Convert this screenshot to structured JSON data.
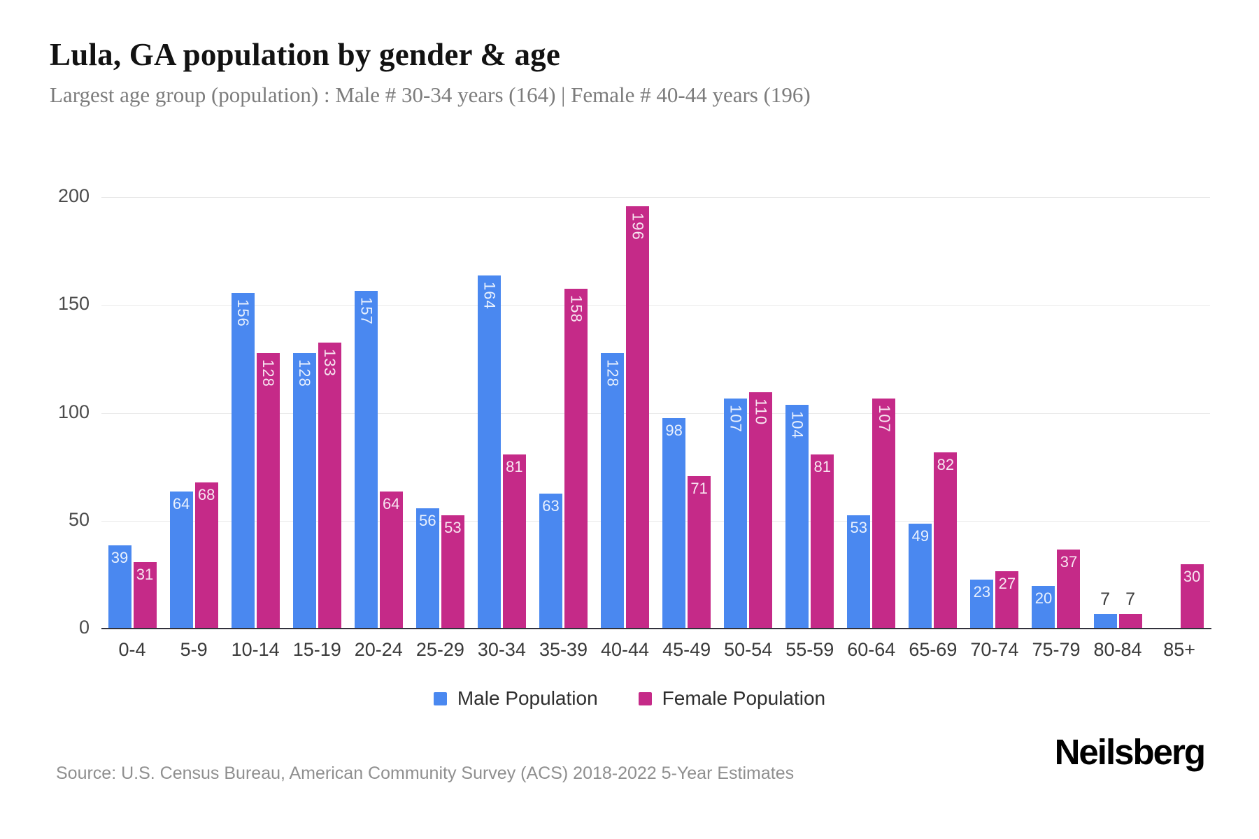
{
  "header": {
    "title": "Lula, GA population by gender & age",
    "subtitle": "Largest age group (population) : Male # 30-34 years (164) | Female # 40-44 years (196)"
  },
  "chart_data": {
    "type": "bar",
    "title": "Lula, GA population by gender & age",
    "categories": [
      "0-4",
      "5-9",
      "10-14",
      "15-19",
      "20-24",
      "25-29",
      "30-34",
      "35-39",
      "40-44",
      "45-49",
      "50-54",
      "55-59",
      "60-64",
      "65-69",
      "70-74",
      "75-79",
      "80-84",
      "85+"
    ],
    "series": [
      {
        "name": "Male Population",
        "color": "#4a88f0",
        "values": [
          39,
          64,
          156,
          128,
          157,
          56,
          164,
          63,
          128,
          98,
          107,
          104,
          53,
          49,
          23,
          20,
          7,
          0
        ]
      },
      {
        "name": "Female Population",
        "color": "#c52a88",
        "values": [
          31,
          68,
          128,
          133,
          64,
          53,
          81,
          158,
          196,
          71,
          110,
          81,
          107,
          82,
          27,
          37,
          7,
          30
        ]
      }
    ],
    "xlabel": "",
    "ylabel": "",
    "ylim": [
      0,
      214
    ],
    "yticks": [
      0,
      50,
      100,
      150,
      200
    ],
    "grid": true,
    "legend_position": "bottom",
    "bar_label_color_inside": "rgba(255,255,255,0.88)",
    "bar_label_color_outside": "#3d3d3d"
  },
  "footer": {
    "source": "Source: U.S. Census Bureau, American Community Survey (ACS) 2018-2022 5-Year Estimates",
    "brand": "Neilsberg"
  }
}
